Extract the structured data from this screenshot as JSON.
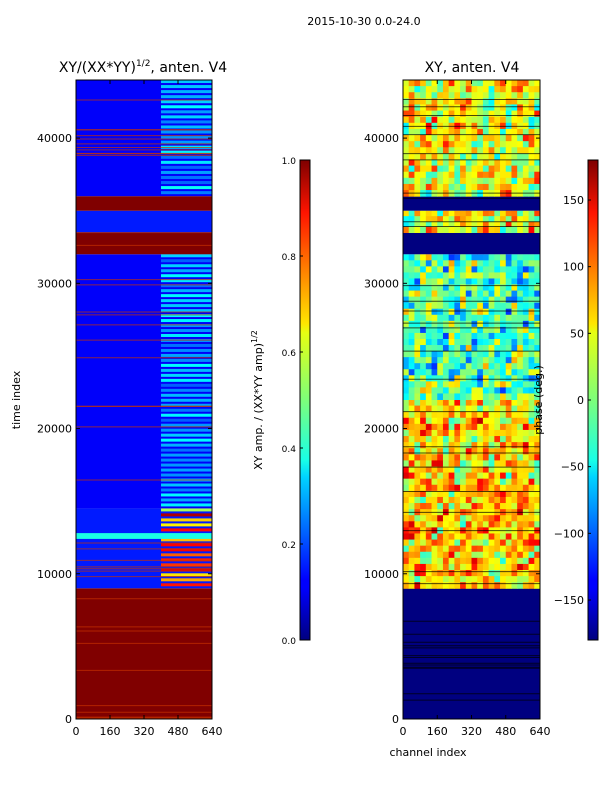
{
  "chart_data": [
    {
      "type": "heatmap",
      "suptitle": "2015-10-30 0.0-24.0",
      "title": "XY/(XX*YY)",
      "title_sup": "1/2",
      "title_suffix": ", anten. V4",
      "xlabel": "",
      "ylabel": "time index",
      "xlim": [
        0,
        640
      ],
      "ylim": [
        0,
        44000
      ],
      "xticks": [
        "0",
        "160",
        "320",
        "480",
        "640"
      ],
      "xtick_values": [
        0,
        160,
        320,
        480,
        640
      ],
      "yticks": [
        "0",
        "10000",
        "20000",
        "30000",
        "40000"
      ],
      "ytick_values": [
        0,
        10000,
        20000,
        30000,
        40000
      ],
      "colorbar": {
        "label": "XY amp. / (XX*YY amp)",
        "label_sup": "1/2",
        "range": [
          0,
          1
        ],
        "ticks": [
          "0.0",
          "0.2",
          "0.4",
          "0.6",
          "0.8",
          "1.0"
        ],
        "tick_values": [
          0,
          0.2,
          0.4,
          0.6,
          0.8,
          1.0
        ]
      },
      "bands": [
        {
          "y0": 0,
          "y1": 9000,
          "value": 1.0,
          "note": "saturated"
        },
        {
          "y0": 9000,
          "y1": 14500,
          "value": 0.15,
          "hot_x0": 400,
          "hot_x1": 640,
          "hot_value": 0.9
        },
        {
          "y0": 12400,
          "y1": 12800,
          "value": 0.4
        },
        {
          "y0": 14500,
          "y1": 32000,
          "value": 0.12,
          "hot_x0": 400,
          "hot_x1": 640,
          "hot_value": 0.35
        },
        {
          "y0": 32000,
          "y1": 33500,
          "value": 1.0
        },
        {
          "y0": 33500,
          "y1": 35000,
          "value": 0.15
        },
        {
          "y0": 35000,
          "y1": 36000,
          "value": 1.0
        },
        {
          "y0": 36000,
          "y1": 44000,
          "value": 0.12,
          "hot_x0": 400,
          "hot_x1": 640,
          "hot_value": 0.35
        }
      ]
    },
    {
      "type": "heatmap",
      "title": "XY, anten. V4",
      "xlabel": "channel index",
      "ylabel": "",
      "xlim": [
        0,
        640
      ],
      "ylim": [
        0,
        44000
      ],
      "xticks": [
        "0",
        "160",
        "320",
        "480",
        "640"
      ],
      "xtick_values": [
        0,
        160,
        320,
        480,
        640
      ],
      "yticks": [
        "0",
        "10000",
        "20000",
        "30000",
        "40000"
      ],
      "ytick_values": [
        0,
        10000,
        20000,
        30000,
        40000
      ],
      "colorbar": {
        "label": "phase (deg.)",
        "range": [
          -180,
          180
        ],
        "ticks": [
          "−150",
          "−100",
          "−50",
          "0",
          "50",
          "100",
          "150"
        ],
        "tick_values": [
          -150,
          -100,
          -50,
          0,
          50,
          100,
          150
        ]
      },
      "bands": [
        {
          "y0": 0,
          "y1": 9000,
          "value": -180
        },
        {
          "y0": 9000,
          "y1": 22000,
          "value": 60,
          "varied": true
        },
        {
          "y0": 22000,
          "y1": 32000,
          "value": -20,
          "varied": true
        },
        {
          "y0": 32000,
          "y1": 33500,
          "value": -180
        },
        {
          "y0": 33500,
          "y1": 35000,
          "value": 40,
          "varied": true
        },
        {
          "y0": 35000,
          "y1": 36000,
          "value": -180
        },
        {
          "y0": 36000,
          "y1": 44000,
          "value": 40,
          "varied": true
        }
      ]
    }
  ]
}
